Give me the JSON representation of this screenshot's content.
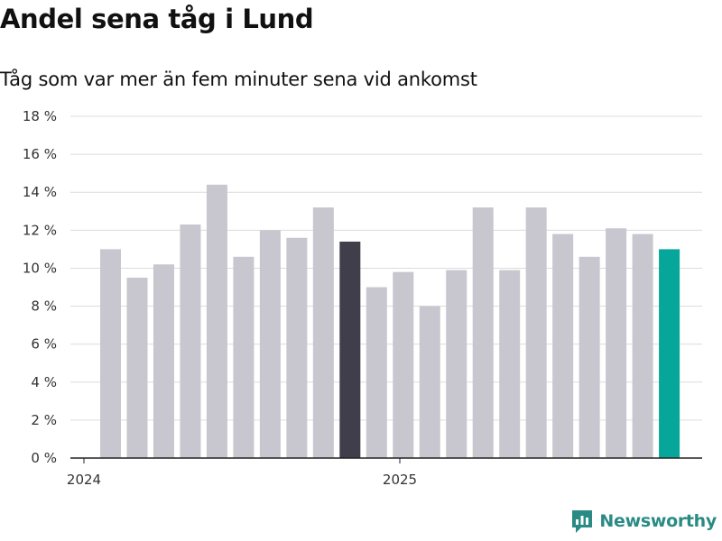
{
  "header": {
    "title": "Andel sena tåg i Lund",
    "subtitle": "Tåg som var mer än fem minuter sena vid ankomst"
  },
  "chart_data": {
    "type": "bar",
    "title": "Andel sena tåg i Lund",
    "subtitle": "Tåg som var mer än fem minuter sena vid ankomst",
    "xlabel": "",
    "ylabel": "",
    "ylim": [
      0,
      18
    ],
    "yticks": [
      0,
      2,
      4,
      6,
      8,
      10,
      12,
      14,
      16,
      18
    ],
    "ytick_suffix": " %",
    "grid": true,
    "x_tick_labels": [
      {
        "label": "2024",
        "at_index": 0
      },
      {
        "label": "2025",
        "at_index": 12
      }
    ],
    "categories": [
      "2024-01",
      "2024-02",
      "2024-03",
      "2024-04",
      "2024-05",
      "2024-06",
      "2024-07",
      "2024-08",
      "2024-09",
      "2024-10",
      "2024-11",
      "2024-12",
      "2025-01",
      "2025-02",
      "2025-03",
      "2025-04",
      "2025-05",
      "2025-06",
      "2025-07",
      "2025-08",
      "2025-09",
      "2025-10"
    ],
    "values": [
      11.0,
      9.5,
      10.2,
      12.3,
      14.4,
      10.6,
      12.0,
      11.6,
      13.2,
      11.4,
      9.0,
      9.8,
      8.0,
      9.9,
      13.2,
      9.9,
      13.2,
      11.8,
      10.6,
      12.1,
      11.8,
      11.0
    ],
    "colors": {
      "default": "#c8c7cf",
      "highlight_previous": "#403e4b",
      "highlight_latest": "#06a79a"
    },
    "highlight_previous_index": 9,
    "highlight_latest_index": 21
  },
  "branding": {
    "name": "Newsworthy",
    "color": "#2a8b84",
    "icon": "newsworthy-logo-icon"
  }
}
